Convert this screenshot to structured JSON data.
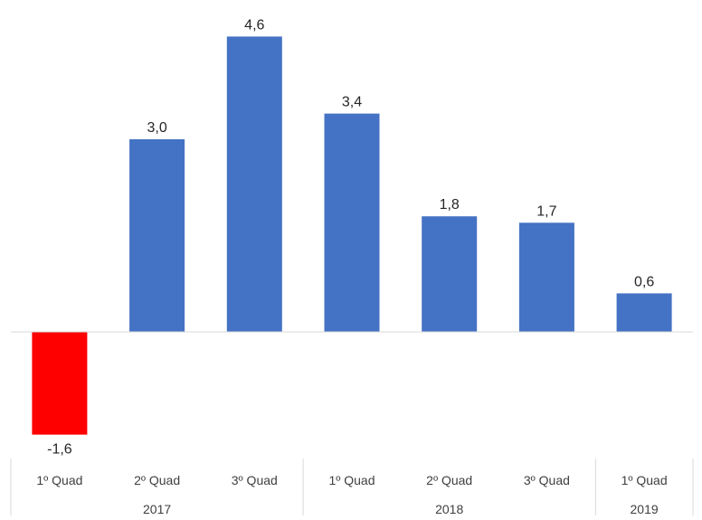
{
  "chart_data": {
    "type": "bar",
    "title": "",
    "xlabel": "",
    "ylabel": "",
    "ylim": [
      -1.6,
      4.6
    ],
    "grid": false,
    "legend": "none",
    "categories": [
      "1º Quad",
      "2º Quad",
      "3º Quad",
      "1º Quad",
      "2º Quad",
      "3º Quad",
      "1º Quad"
    ],
    "groups": [
      {
        "label": "2017",
        "count": 3
      },
      {
        "label": "2018",
        "count": 3
      },
      {
        "label": "2019",
        "count": 1
      }
    ],
    "values": [
      -1.6,
      3.0,
      4.6,
      3.4,
      1.8,
      1.7,
      0.6
    ],
    "data_labels": [
      "-1,6",
      "3,0",
      "4,6",
      "3,4",
      "1,8",
      "1,7",
      "0,6"
    ],
    "colors": {
      "positive": "#4472C4",
      "negative": "#FF0000",
      "axis": "#D9D9D9"
    }
  }
}
